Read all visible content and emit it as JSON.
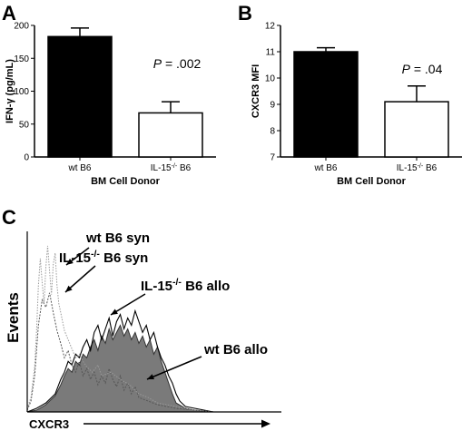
{
  "chart_data": [
    {
      "panel": "A",
      "type": "bar",
      "categories": [
        "wt B6",
        "IL-15-/- B6"
      ],
      "category_parts": [
        [
          "wt B6",
          "",
          ""
        ],
        [
          "IL-15",
          "-/-",
          " B6"
        ]
      ],
      "values": [
        183,
        67
      ],
      "errors": [
        13,
        17
      ],
      "fills": [
        "#000000",
        "#ffffff"
      ],
      "ylabel": "IFN-γ (pg/mL)",
      "xlabel": "BM Cell Donor",
      "ylim": [
        0,
        200
      ],
      "yticks": [
        0,
        50,
        100,
        150,
        200
      ],
      "annotation": {
        "italic": "P",
        "rest": " = .002"
      }
    },
    {
      "panel": "B",
      "type": "bar",
      "categories": [
        "wt B6",
        "IL-15-/- B6"
      ],
      "category_parts": [
        [
          "wt B6",
          "",
          ""
        ],
        [
          "IL-15",
          "-/-",
          " B6"
        ]
      ],
      "values": [
        11.0,
        9.1
      ],
      "errors": [
        0.15,
        0.6
      ],
      "fills": [
        "#000000",
        "#ffffff"
      ],
      "ylabel": "CXCR3 MFI",
      "xlabel": "BM Cell Donor",
      "ylim": [
        7,
        12
      ],
      "yticks": [
        7,
        8,
        9,
        10,
        11,
        12
      ],
      "annotation": {
        "italic": "P",
        "rest": " = .04"
      }
    },
    {
      "panel": "C",
      "type": "area",
      "xlabel": "CXCR3",
      "ylabel": "Events",
      "series": [
        {
          "name": "wt B6 syn",
          "style": "dotted-light-gray",
          "x": [
            0,
            2,
            4,
            5,
            6,
            7,
            8,
            9,
            10,
            11,
            12,
            13,
            14,
            15,
            16,
            17,
            18,
            20,
            22,
            24,
            26,
            28,
            30,
            32,
            35,
            38,
            40,
            45,
            50,
            55,
            60,
            65,
            70,
            80,
            90,
            100
          ],
          "y": [
            2,
            8,
            25,
            45,
            70,
            85,
            72,
            60,
            80,
            92,
            78,
            65,
            82,
            88,
            70,
            60,
            55,
            45,
            40,
            35,
            30,
            32,
            28,
            25,
            22,
            26,
            20,
            22,
            18,
            15,
            10,
            8,
            5,
            3,
            1,
            0
          ]
        },
        {
          "name": "IL-15-/- B6 syn",
          "name_parts": [
            "IL-15",
            "-/-",
            " B6 syn"
          ],
          "style": "dotted-dark-gray",
          "x": [
            0,
            2,
            4,
            6,
            8,
            10,
            12,
            14,
            16,
            18,
            20,
            22,
            24,
            26,
            28,
            30,
            32,
            34,
            36,
            38,
            40,
            42,
            44,
            46,
            48,
            50,
            52,
            54,
            56,
            58,
            60,
            65,
            70,
            80,
            90,
            100
          ],
          "y": [
            1,
            6,
            20,
            48,
            62,
            58,
            66,
            55,
            45,
            38,
            30,
            34,
            26,
            22,
            28,
            20,
            24,
            18,
            22,
            15,
            20,
            16,
            24,
            18,
            14,
            20,
            12,
            16,
            10,
            14,
            8,
            6,
            4,
            2,
            1,
            0
          ]
        },
        {
          "name": "IL-15-/- B6 allo",
          "name_parts": [
            "IL-15",
            "-/-",
            " B6 allo"
          ],
          "style": "black-outline",
          "x": [
            0,
            5,
            10,
            15,
            18,
            20,
            22,
            24,
            26,
            28,
            30,
            32,
            34,
            36,
            38,
            40,
            42,
            44,
            46,
            48,
            50,
            52,
            54,
            56,
            58,
            60,
            62,
            64,
            66,
            68,
            70,
            72,
            74,
            76,
            78,
            80,
            82,
            85,
            90,
            95,
            100
          ],
          "y": [
            0,
            2,
            5,
            10,
            18,
            22,
            28,
            26,
            32,
            30,
            36,
            40,
            34,
            44,
            48,
            40,
            46,
            52,
            42,
            50,
            54,
            46,
            52,
            48,
            56,
            50,
            44,
            48,
            40,
            44,
            36,
            30,
            26,
            20,
            16,
            10,
            6,
            3,
            2,
            1,
            0
          ]
        },
        {
          "name": "wt B6 allo",
          "style": "gray-filled",
          "x": [
            0,
            5,
            10,
            15,
            18,
            20,
            22,
            24,
            26,
            28,
            30,
            32,
            34,
            36,
            38,
            40,
            42,
            44,
            46,
            48,
            50,
            52,
            54,
            56,
            58,
            60,
            62,
            64,
            66,
            68,
            70,
            72,
            74,
            76,
            78,
            80,
            85,
            90,
            100
          ],
          "y": [
            0,
            1,
            4,
            9,
            15,
            20,
            24,
            22,
            28,
            26,
            32,
            30,
            36,
            40,
            34,
            42,
            38,
            46,
            40,
            44,
            48,
            42,
            46,
            40,
            44,
            38,
            42,
            36,
            40,
            32,
            36,
            28,
            22,
            16,
            10,
            5,
            2,
            1,
            0
          ]
        }
      ]
    }
  ],
  "panel_letters": [
    "A",
    "B",
    "C"
  ]
}
